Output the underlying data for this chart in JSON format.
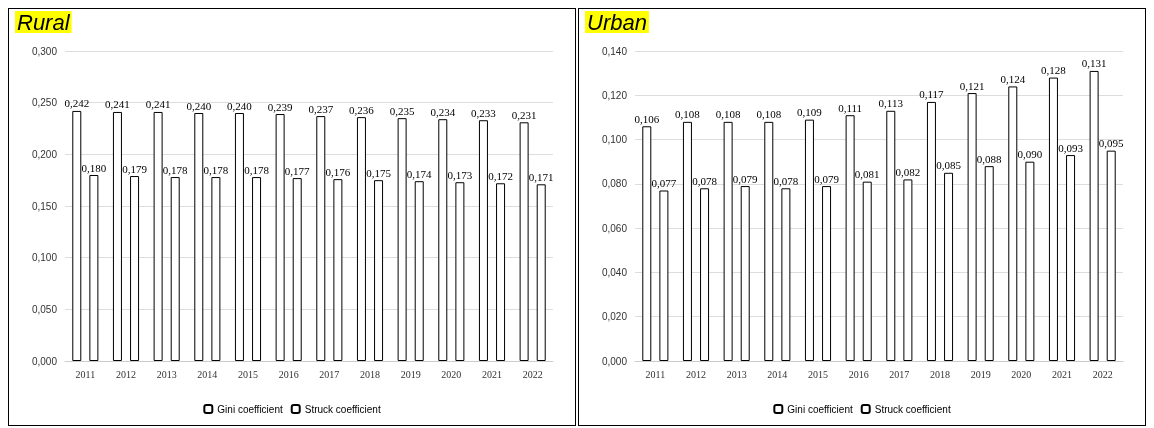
{
  "chart_data": [
    {
      "type": "bar",
      "title": "Rural",
      "categories": [
        "2011",
        "2012",
        "2013",
        "2014",
        "2015",
        "2016",
        "2017",
        "2018",
        "2019",
        "2020",
        "2021",
        "2022"
      ],
      "series": [
        {
          "name": "Gini coefficient",
          "color": "#ffffff",
          "values": [
            0.242,
            0.241,
            0.241,
            0.24,
            0.24,
            0.239,
            0.237,
            0.236,
            0.235,
            0.234,
            0.233,
            0.231
          ],
          "value_labels": [
            "0,242",
            "0,241",
            "0,241",
            "0,240",
            "0,240",
            "0,239",
            "0,237",
            "0,236",
            "0,235",
            "0,234",
            "0,233",
            "0,231"
          ]
        },
        {
          "name": "Struck coefficient",
          "color": "#ffffff",
          "values": [
            0.18,
            0.179,
            0.178,
            0.178,
            0.178,
            0.177,
            0.176,
            0.175,
            0.174,
            0.173,
            0.172,
            0.171
          ],
          "value_labels": [
            "0,180",
            "0,179",
            "0,178",
            "0,178",
            "0,178",
            "0,177",
            "0,176",
            "0,175",
            "0,174",
            "0,173",
            "0,172",
            "0,171"
          ]
        }
      ],
      "ylim": [
        0,
        0.3
      ],
      "yticks": [
        {
          "value": 0,
          "label": "0,000"
        },
        {
          "value": 0.05,
          "label": "0,050"
        },
        {
          "value": 0.1,
          "label": "0,100"
        },
        {
          "value": 0.15,
          "label": "0,150"
        },
        {
          "value": 0.2,
          "label": "0,200"
        },
        {
          "value": 0.25,
          "label": "0,250"
        },
        {
          "value": 0.3,
          "label": "0,300"
        }
      ],
      "grid": "y",
      "legend": "bottom"
    },
    {
      "type": "bar",
      "title": "Urban",
      "categories": [
        "2011",
        "2012",
        "2013",
        "2014",
        "2015",
        "2016",
        "2017",
        "2018",
        "2019",
        "2020",
        "2021",
        "2022"
      ],
      "series": [
        {
          "name": "Gini coefficient",
          "color": "#ffffff",
          "values": [
            0.106,
            0.108,
            0.108,
            0.108,
            0.109,
            0.111,
            0.113,
            0.117,
            0.121,
            0.124,
            0.128,
            0.131
          ],
          "value_labels": [
            "0,106",
            "0,108",
            "0,108",
            "0,108",
            "0,109",
            "0,111",
            "0,113",
            "0,117",
            "0,121",
            "0,124",
            "0,128",
            "0,131"
          ]
        },
        {
          "name": "Struck coefficient",
          "color": "#ffffff",
          "values": [
            0.077,
            0.078,
            0.079,
            0.078,
            0.079,
            0.081,
            0.082,
            0.085,
            0.088,
            0.09,
            0.093,
            0.095
          ],
          "value_labels": [
            "0,077",
            "0,078",
            "0,079",
            "0,078",
            "0,079",
            "0,081",
            "0,082",
            "0,085",
            "0,088",
            "0,090",
            "0,093",
            "0,095"
          ]
        }
      ],
      "ylim": [
        0,
        0.14
      ],
      "yticks": [
        {
          "value": 0,
          "label": "0,000"
        },
        {
          "value": 0.02,
          "label": "0,020"
        },
        {
          "value": 0.04,
          "label": "0,040"
        },
        {
          "value": 0.06,
          "label": "0,060"
        },
        {
          "value": 0.08,
          "label": "0,080"
        },
        {
          "value": 0.1,
          "label": "0,100"
        },
        {
          "value": 0.12,
          "label": "0,120"
        },
        {
          "value": 0.14,
          "label": "0,140"
        }
      ],
      "grid": "y",
      "legend": "bottom"
    }
  ]
}
